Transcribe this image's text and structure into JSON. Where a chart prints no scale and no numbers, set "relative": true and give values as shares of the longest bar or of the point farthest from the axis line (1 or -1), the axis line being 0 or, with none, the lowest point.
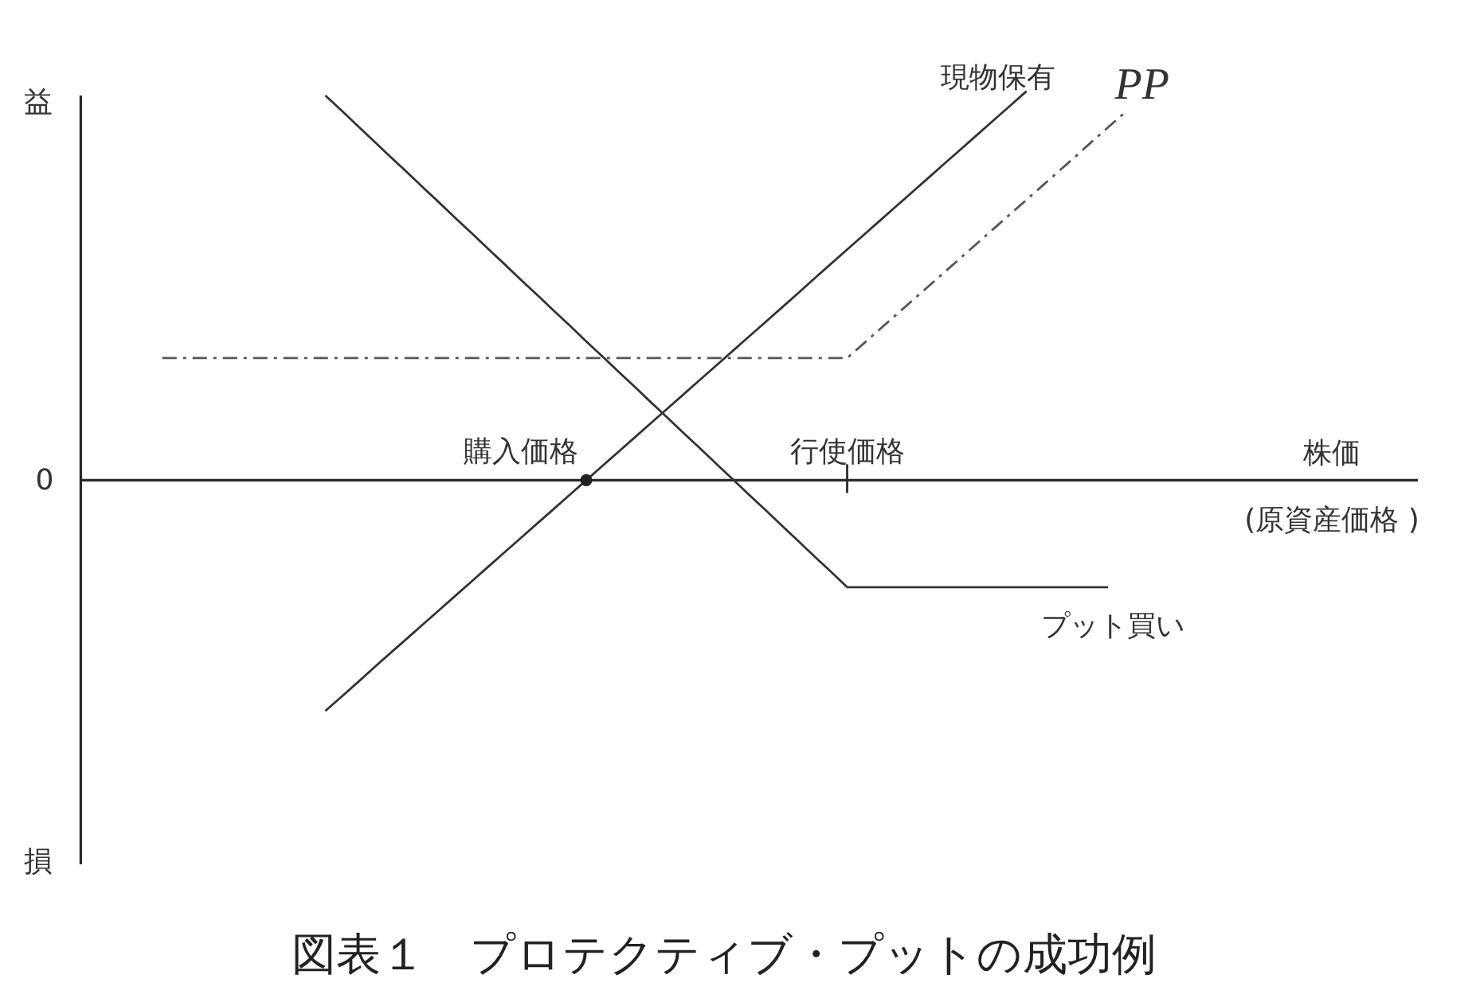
{
  "chart_data": {
    "type": "line",
    "relative": true,
    "title": "図表１　プロテクティブ・プットの成功例",
    "xlabel": "株価\n(原資産価格 )",
    "annotations": [
      "益",
      "損",
      "0"
    ],
    "categories": [
      null,
      null,
      null,
      null,
      null,
      null,
      null,
      null,
      null,
      null,
      null,
      null,
      null,
      null,
      null,
      null,
      null,
      null,
      null,
      null,
      null,
      null,
      null,
      null,
      null,
      null,
      null,
      "購入価格",
      null,
      null,
      null,
      null,
      null,
      null,
      null,
      null,
      null,
      null,
      null,
      null,
      null,
      null,
      null,
      null,
      null,
      null,
      null,
      "行使価格",
      null,
      null,
      null,
      null,
      null,
      null,
      null,
      null,
      null,
      null,
      null,
      null,
      null,
      null,
      null,
      null,
      null,
      null,
      null,
      null,
      null,
      null,
      null,
      null,
      null,
      null,
      null,
      null,
      null,
      null,
      null,
      null,
      null,
      null,
      null
    ],
    "series": [
      {
        "name": "現物保有",
        "color": "#333333",
        "values": [
          null,
          null,
          null,
          null,
          null,
          null,
          null,
          null,
          null,
          null,
          null,
          null,
          null,
          null,
          null,
          -0.593,
          -0.556,
          -0.519,
          -0.481,
          -0.444,
          -0.407,
          -0.37,
          -0.333,
          -0.296,
          -0.259,
          -0.222,
          -0.185,
          -0.148,
          -0.111,
          -0.074,
          -0.037,
          0,
          0.037,
          0.074,
          0.111,
          0.148,
          0.185,
          0.222,
          0.259,
          0.296,
          0.333,
          0.37,
          0.407,
          0.444,
          0.481,
          0.519,
          0.556,
          0.593,
          0.63,
          0.667,
          0.704,
          0.741,
          0.778,
          0.815,
          0.852,
          0.889,
          0.926,
          0.963,
          1,
          null,
          null,
          null,
          null,
          null,
          null,
          null,
          null,
          null,
          null,
          null,
          null,
          null,
          null,
          null,
          null,
          null,
          null,
          null,
          null,
          null,
          null,
          null,
          null
        ]
      },
      {
        "name": "プット買い",
        "color": "#333333",
        "values": [
          null,
          null,
          null,
          null,
          null,
          null,
          null,
          null,
          null,
          null,
          null,
          null,
          null,
          null,
          null,
          0.989,
          0.95,
          0.91,
          0.871,
          0.831,
          0.792,
          0.752,
          0.713,
          0.673,
          0.634,
          0.594,
          0.555,
          0.515,
          0.476,
          0.436,
          0.397,
          0.357,
          0.318,
          0.278,
          0.239,
          0.199,
          0.16,
          0.12,
          0.081,
          0.041,
          0.002,
          -0.038,
          -0.077,
          -0.117,
          -0.156,
          -0.196,
          -0.235,
          -0.275,
          -0.275,
          -0.275,
          -0.275,
          -0.275,
          -0.275,
          -0.275,
          -0.275,
          -0.275,
          -0.275,
          -0.275,
          -0.275,
          -0.275,
          -0.275,
          -0.275,
          -0.275,
          -0.275,
          null,
          null,
          null,
          null,
          null,
          null,
          null,
          null,
          null,
          null,
          null,
          null,
          null,
          null,
          null,
          null,
          null,
          null,
          null
        ]
      },
      {
        "name": "PP",
        "color": "#555555",
        "line_style": "dashdot",
        "values": [
          null,
          null,
          null,
          null,
          null,
          0.314,
          0.314,
          0.314,
          0.314,
          0.314,
          0.314,
          0.314,
          0.314,
          0.314,
          0.314,
          0.314,
          0.314,
          0.314,
          0.314,
          0.314,
          0.314,
          0.314,
          0.314,
          0.314,
          0.314,
          0.314,
          0.314,
          0.314,
          0.314,
          0.314,
          0.314,
          0.314,
          0.314,
          0.314,
          0.314,
          0.314,
          0.314,
          0.314,
          0.314,
          0.314,
          0.314,
          0.314,
          0.314,
          0.314,
          0.314,
          0.314,
          0.314,
          0.314,
          0.351,
          0.388,
          0.425,
          0.462,
          0.499,
          0.536,
          0.573,
          0.61,
          0.647,
          0.684,
          0.721,
          0.758,
          0.795,
          0.832,
          0.87,
          0.907,
          0.944,
          null,
          null,
          null,
          null,
          null,
          null,
          null,
          null,
          null,
          null,
          null,
          null,
          null,
          null,
          null,
          null,
          null,
          null
        ]
      },
      {
        "type": "scatter",
        "color": "#222222",
        "marker": "circle",
        "values": [
          null,
          null,
          null,
          null,
          null,
          null,
          null,
          null,
          null,
          null,
          null,
          null,
          null,
          null,
          null,
          null,
          null,
          null,
          null,
          null,
          null,
          null,
          null,
          null,
          null,
          null,
          null,
          null,
          null,
          null,
          null,
          0,
          null,
          null,
          null,
          null,
          null,
          null,
          null,
          null,
          null,
          null,
          null,
          null,
          null,
          null,
          null,
          null,
          null,
          null,
          null,
          null,
          null,
          null,
          null,
          null,
          null,
          null,
          null,
          null,
          null,
          null,
          null,
          null,
          null,
          null,
          null,
          null,
          null,
          null,
          null,
          null,
          null,
          null,
          null,
          null,
          null,
          null,
          null,
          null,
          null,
          null,
          null
        ]
      }
    ]
  }
}
